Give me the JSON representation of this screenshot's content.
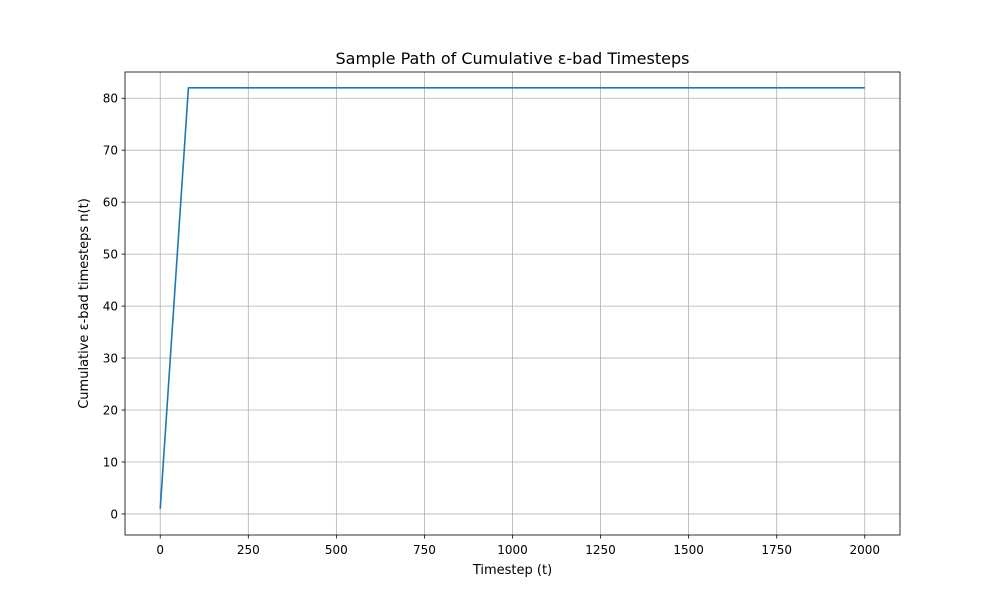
{
  "chart_data": {
    "type": "line",
    "title": "Sample Path of Cumulative ε-bad Timesteps",
    "xlabel": "Timestep (t)",
    "ylabel": "Cumulative ε-bad timesteps n(t)",
    "xlim": [
      -100,
      2100
    ],
    "ylim": [
      -4.05,
      85.05
    ],
    "xticks": [
      0,
      250,
      500,
      750,
      1000,
      1250,
      1500,
      1750,
      2000
    ],
    "yticks": [
      0,
      10,
      20,
      30,
      40,
      50,
      60,
      70,
      80
    ],
    "grid": true,
    "series": [
      {
        "color": "#1f77b4",
        "x": [
          0,
          80,
          2000
        ],
        "y": [
          1,
          82,
          82
        ]
      }
    ]
  }
}
